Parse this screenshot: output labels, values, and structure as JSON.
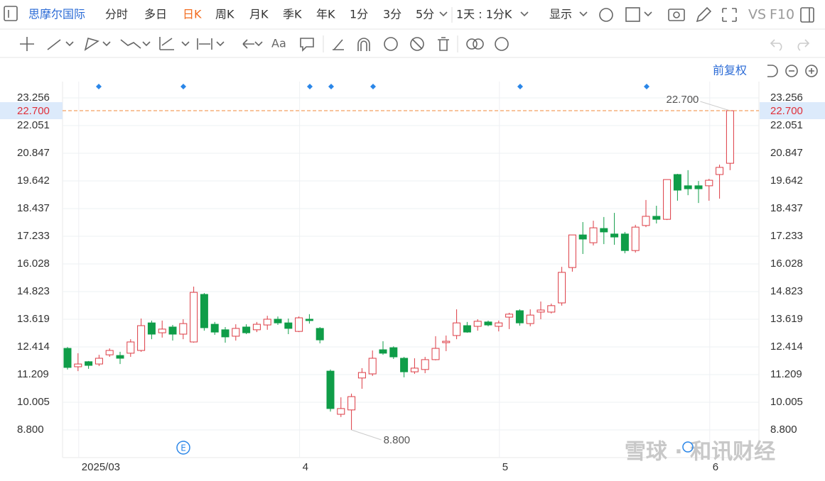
{
  "toolbar": {
    "stock": "思摩尔国际",
    "periods": [
      "分时",
      "多日",
      "日K",
      "周K",
      "月K",
      "季K",
      "年K",
      "1分",
      "3分",
      "5分"
    ],
    "multi_period": "1天 : 1分K",
    "display": "显示",
    "vs": "VS",
    "f10": "F10",
    "text_tool": "Aa",
    "adjust": "前复权"
  },
  "event_badge": "E",
  "watermark": "雪球 · 和讯财经",
  "chart_data": {
    "type": "candlestick",
    "categories": [
      null,
      "2025/03",
      null,
      null,
      null,
      null,
      null,
      null,
      null,
      null,
      null,
      null,
      null,
      null,
      null,
      null,
      null,
      null,
      null,
      null,
      null,
      null,
      "4",
      null,
      null,
      null,
      null,
      null,
      null,
      null,
      null,
      null,
      null,
      null,
      null,
      null,
      null,
      null,
      null,
      null,
      null,
      "5",
      null,
      null,
      null,
      null,
      null,
      null,
      null,
      null,
      null,
      null,
      null,
      null,
      null,
      null,
      null,
      null,
      null,
      null,
      null,
      "6",
      null,
      null
    ],
    "open": [
      12.35,
      11.55,
      11.77,
      11.67,
      12.07,
      12.04,
      12.14,
      12.26,
      13.46,
      13.03,
      13.28,
      12.97,
      12.63,
      14.7,
      13.4,
      13.16,
      12.88,
      13.28,
      13.16,
      13.37,
      13.62,
      13.46,
      13.09,
      13.62,
      13.22,
      11.36,
      9.48,
      9.67,
      11.06,
      11.24,
      12.29,
      12.38,
      11.92,
      11.33,
      11.43,
      11.86,
      12.6,
      12.91,
      13.34,
      13.31,
      13.5,
      13.31,
      13.71,
      13.99,
      13.43,
      13.93,
      13.93,
      14.33,
      15.87,
      17.29,
      16.95,
      17.57,
      17.33,
      17.33,
      16.61,
      17.7,
      18.1,
      17.97,
      19.92,
      19.43,
      19.43,
      19.43,
      19.92,
      20.41
    ],
    "high": [
      12.41,
      12.14,
      11.8,
      12.07,
      12.35,
      12.2,
      12.75,
      13.65,
      13.56,
      13.56,
      13.37,
      13.62,
      15.04,
      14.76,
      13.5,
      13.28,
      13.4,
      13.4,
      13.5,
      13.77,
      13.74,
      13.65,
      13.74,
      13.84,
      13.28,
      11.43,
      10.22,
      10.38,
      11.49,
      12.26,
      12.66,
      12.44,
      11.98,
      11.92,
      11.98,
      12.88,
      12.91,
      14.05,
      13.5,
      13.62,
      13.56,
      13.56,
      13.9,
      14.05,
      14.05,
      14.39,
      14.3,
      15.9,
      17.29,
      17.85,
      17.91,
      18.07,
      18.25,
      17.42,
      17.73,
      18.81,
      18.56,
      19.7,
      19.95,
      20.11,
      19.64,
      19.73,
      20.35,
      22.7
    ],
    "low": [
      11.43,
      11.36,
      11.46,
      11.58,
      11.98,
      11.67,
      11.98,
      12.2,
      12.75,
      12.82,
      12.69,
      12.75,
      12.6,
      13.12,
      12.94,
      12.6,
      12.69,
      12.97,
      13.06,
      13.16,
      13.37,
      12.97,
      13.06,
      13.43,
      12.57,
      9.6,
      9.36,
      8.8,
      10.59,
      11.15,
      12.07,
      11.89,
      11.09,
      11.24,
      11.27,
      11.83,
      12.23,
      12.75,
      13.03,
      13.12,
      13.31,
      13.09,
      13.19,
      13.34,
      13.31,
      13.62,
      13.87,
      14.21,
      15.69,
      16.46,
      16.83,
      16.89,
      16.86,
      16.49,
      16.52,
      17.63,
      17.79,
      17.94,
      18.78,
      19.02,
      18.68,
      18.78,
      18.87,
      20.11
    ],
    "close": [
      11.52,
      11.67,
      11.61,
      11.92,
      12.26,
      11.92,
      12.63,
      13.34,
      12.97,
      13.19,
      12.97,
      13.43,
      14.79,
      13.25,
      13.06,
      12.85,
      13.22,
      13.03,
      13.4,
      13.62,
      13.46,
      13.22,
      13.68,
      13.56,
      12.72,
      9.73,
      9.73,
      10.25,
      11.3,
      11.92,
      12.14,
      11.98,
      11.33,
      11.49,
      11.86,
      12.35,
      12.66,
      13.46,
      13.06,
      13.53,
      13.37,
      13.46,
      13.84,
      13.46,
      13.8,
      14.02,
      14.21,
      15.66,
      17.29,
      17.11,
      17.6,
      17.42,
      17.2,
      16.61,
      17.63,
      18.1,
      17.97,
      19.7,
      19.24,
      19.3,
      19.3,
      19.67,
      20.23,
      22.7
    ],
    "up_color": "#dd3b44",
    "down_color": "#0f9d48",
    "ylim": [
      7.595,
      24.43
    ],
    "yticks": [
      {
        "value": 8.8,
        "label": "8.800"
      },
      10.005,
      11.209,
      12.414,
      13.619,
      14.823,
      16.028,
      17.233,
      18.437,
      19.642,
      20.847,
      22.051,
      23.256
    ],
    "last_price": {
      "value": 22.7,
      "label": "22.700"
    },
    "max_label": "22.700",
    "min_label": "8.800",
    "grid": true
  }
}
